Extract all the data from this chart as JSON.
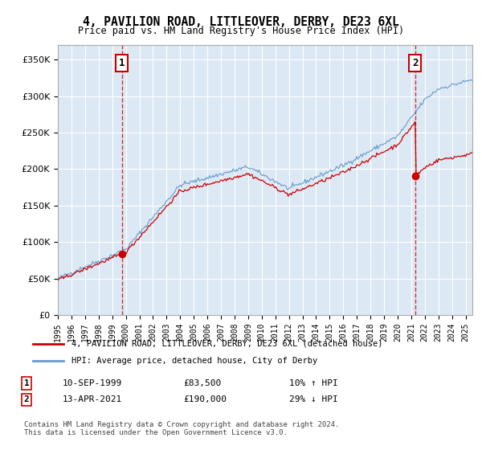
{
  "title": "4, PAVILION ROAD, LITTLEOVER, DERBY, DE23 6XL",
  "subtitle": "Price paid vs. HM Land Registry's House Price Index (HPI)",
  "background_color": "#dce9f5",
  "plot_bg_color": "#dce9f5",
  "red_line_color": "#cc0000",
  "blue_line_color": "#6699cc",
  "sale1_date": "10-SEP-1999",
  "sale1_price": 83500,
  "sale1_year": 1999.7,
  "sale1_label": "1",
  "sale1_hpi": "10% ↑ HPI",
  "sale2_date": "13-APR-2021",
  "sale2_price": 190000,
  "sale2_year": 2021.3,
  "sale2_label": "2",
  "sale2_hpi": "29% ↓ HPI",
  "legend_red": "4, PAVILION ROAD, LITTLEOVER, DERBY, DE23 6XL (detached house)",
  "legend_blue": "HPI: Average price, detached house, City of Derby",
  "footer": "Contains HM Land Registry data © Crown copyright and database right 2024.\nThis data is licensed under the Open Government Licence v3.0.",
  "ylim": [
    0,
    370000
  ],
  "xlim_start": 1995.0,
  "xlim_end": 2025.5
}
